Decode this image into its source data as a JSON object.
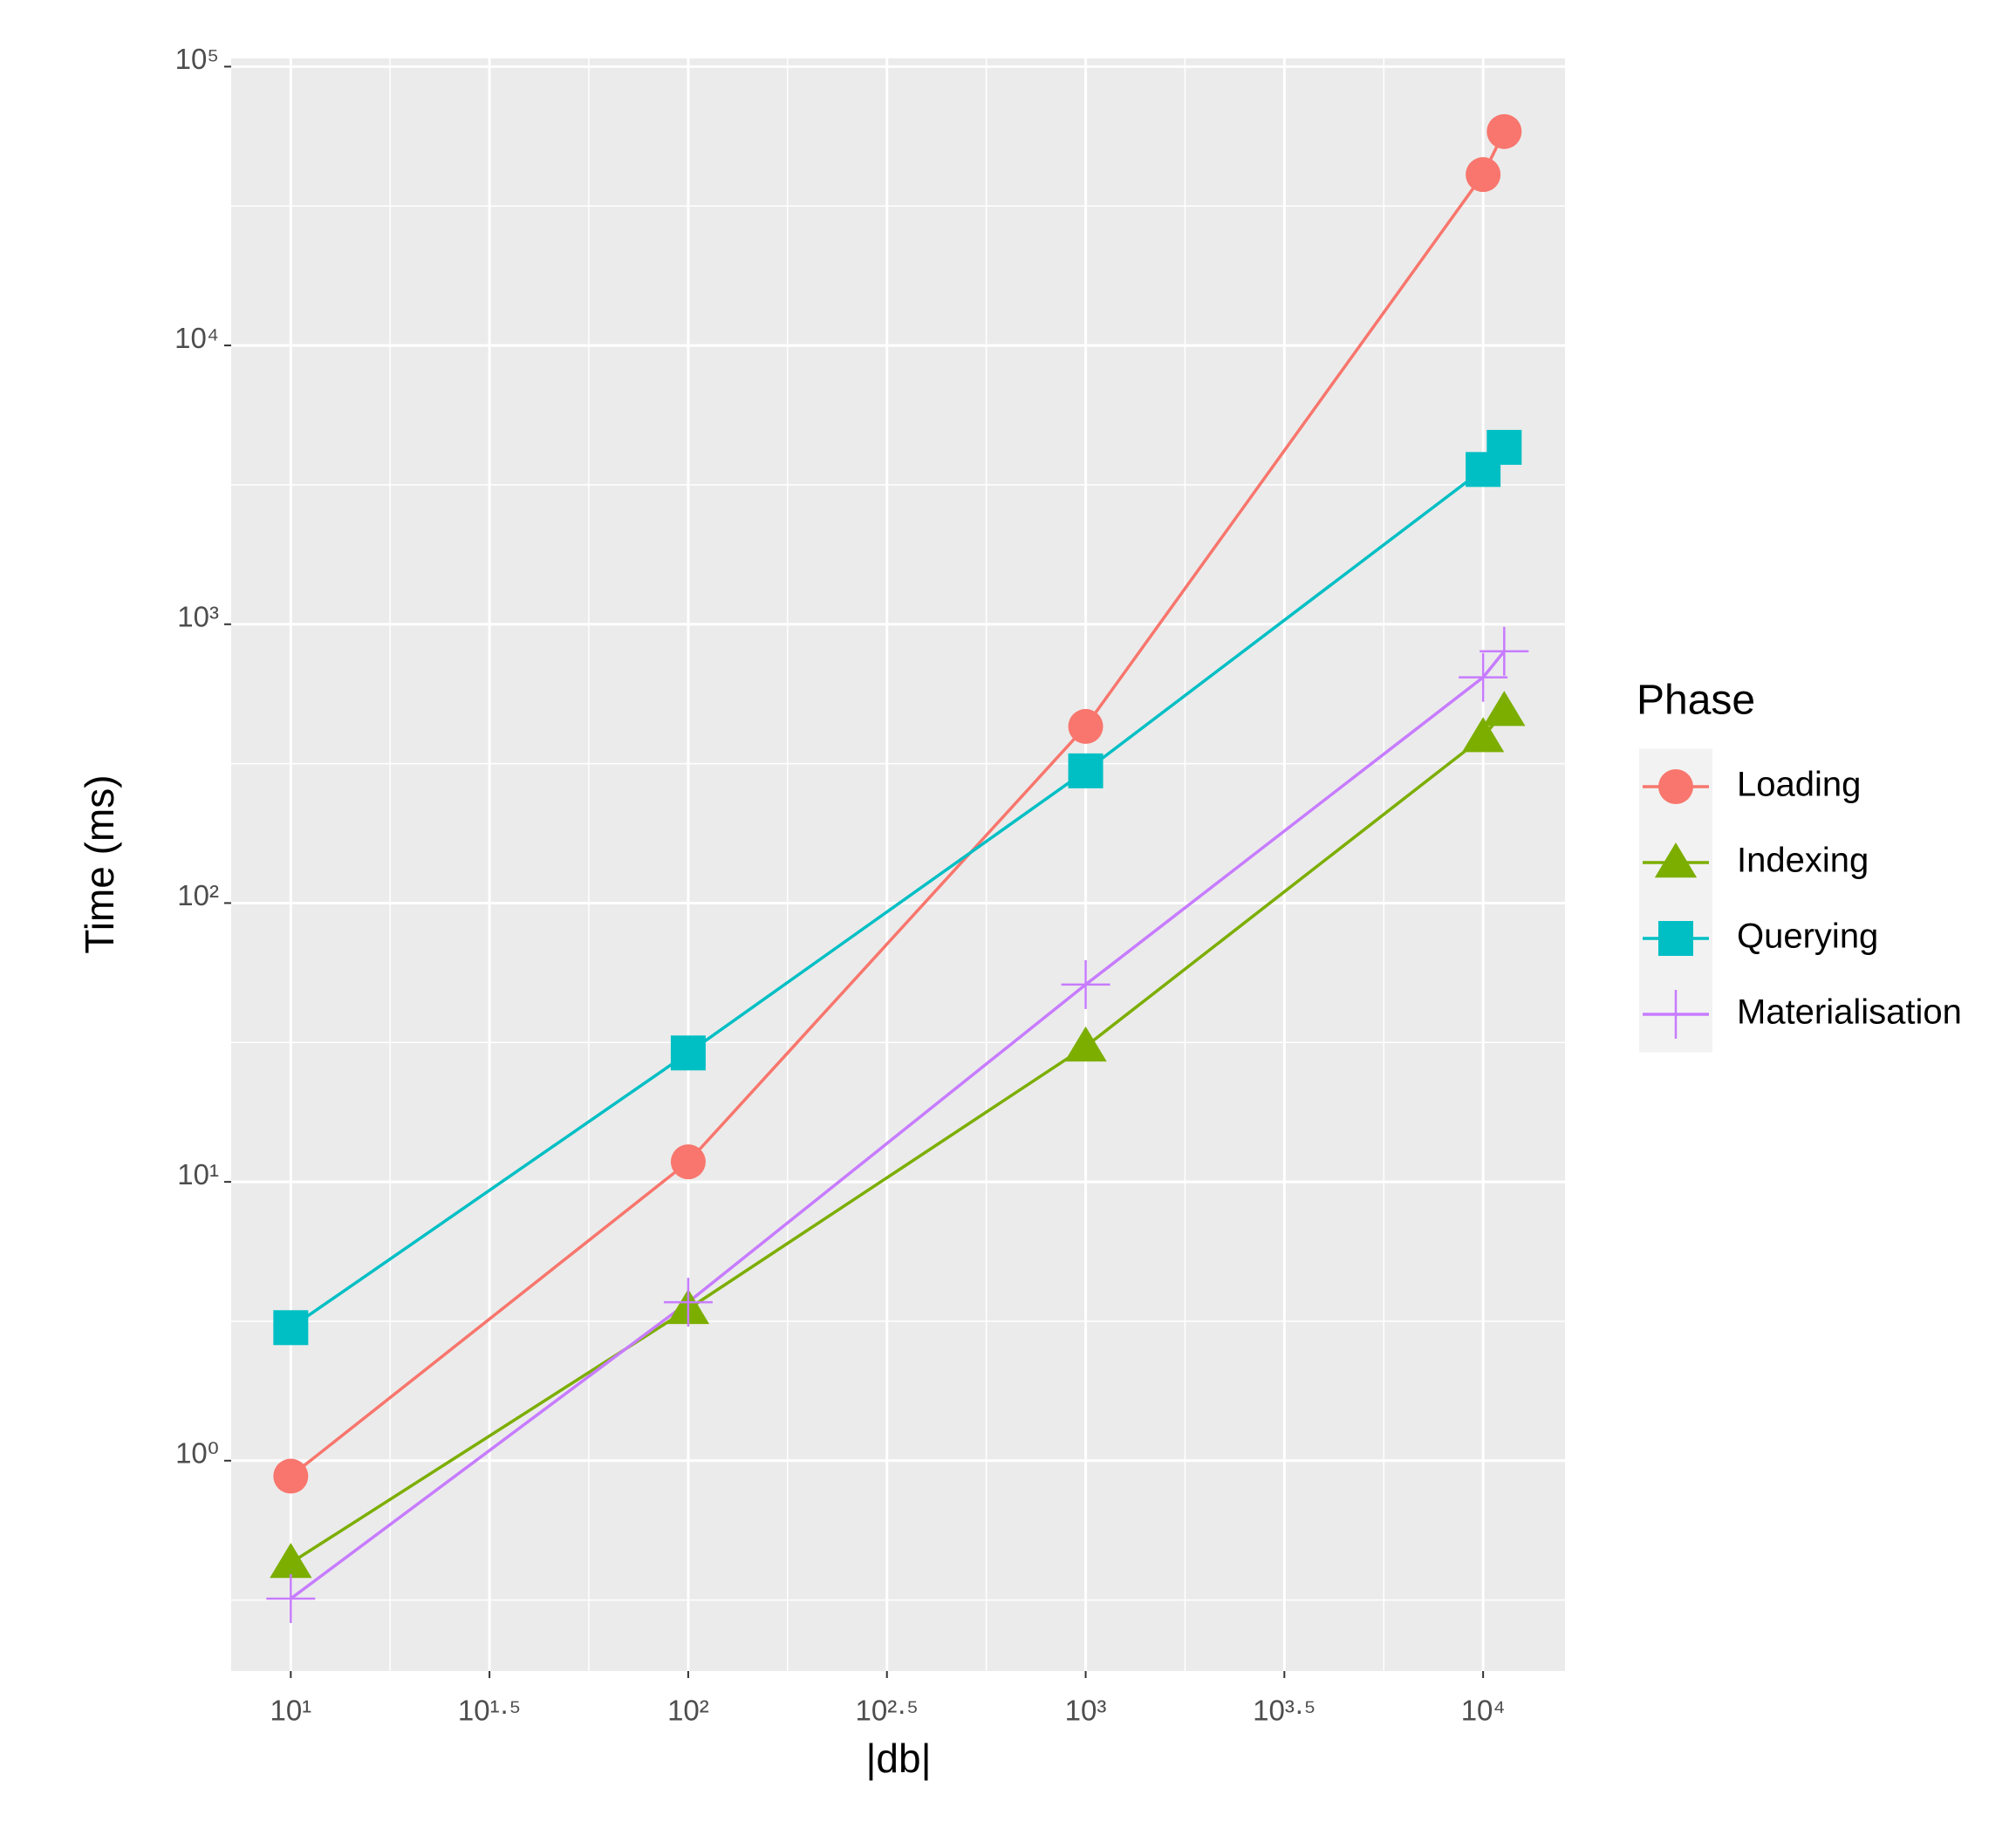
{
  "chart_data": {
    "type": "line",
    "x_label": "|db|",
    "y_label": "Time (ms)",
    "x_log": true,
    "y_log": true,
    "grid": true,
    "legend_title": "Phase",
    "legend_position": "right",
    "x": [
      10,
      100,
      1000,
      10000,
      11300
    ],
    "xlim": [
      7.08,
      16070
    ],
    "ylim": [
      0.176,
      107000
    ],
    "xticks": [
      {
        "value": 10,
        "label": "10¹"
      },
      {
        "value": 31.62,
        "label": "10¹·⁵"
      },
      {
        "value": 100,
        "label": "10²"
      },
      {
        "value": 316.2,
        "label": "10²·⁵"
      },
      {
        "value": 1000,
        "label": "10³"
      },
      {
        "value": 3162,
        "label": "10³·⁵"
      },
      {
        "value": 10000,
        "label": "10⁴"
      }
    ],
    "yticks": [
      {
        "value": 1,
        "label": "10⁰"
      },
      {
        "value": 10,
        "label": "10¹"
      },
      {
        "value": 100,
        "label": "10²"
      },
      {
        "value": 1000,
        "label": "10³"
      },
      {
        "value": 10000,
        "label": "10⁴"
      },
      {
        "value": 100000,
        "label": "10⁵"
      }
    ],
    "series": [
      {
        "name": "Loading",
        "color": "#F8766D",
        "shape": "circle",
        "values": [
          0.88,
          11.8,
          430,
          41000,
          58500
        ]
      },
      {
        "name": "Indexing",
        "color": "#7CAE00",
        "shape": "triangle",
        "values": [
          0.43,
          3.5,
          30.6,
          394,
          489
        ]
      },
      {
        "name": "Querying",
        "color": "#00BFC4",
        "shape": "square",
        "values": [
          3.0,
          29,
          298,
          3590,
          4310
        ]
      },
      {
        "name": "Materialisation",
        "color": "#C77CFF",
        "shape": "plus",
        "values": [
          0.32,
          3.7,
          51,
          645,
          800
        ]
      }
    ]
  }
}
